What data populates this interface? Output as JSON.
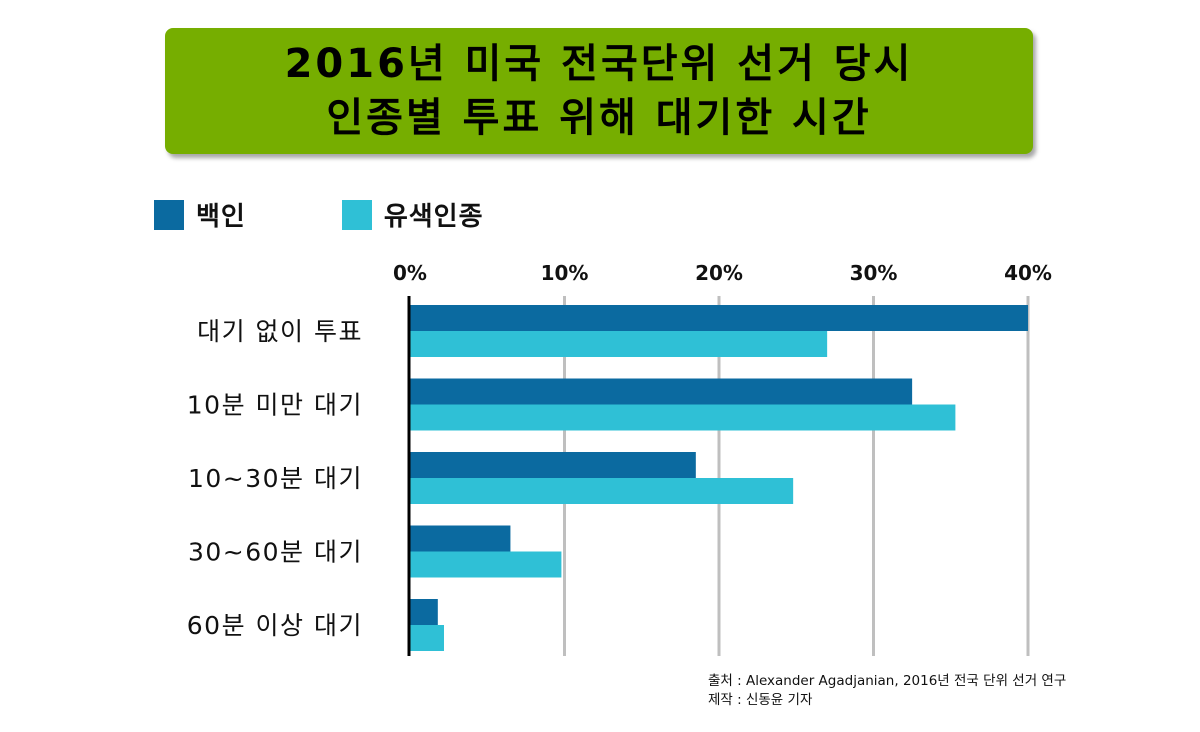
{
  "title_lines": [
    "2016년 미국 전국단위 선거 당시",
    "인종별 투표 위해 대기한 시간"
  ],
  "colors": {
    "title_bg": "#76ae00",
    "white": "#0b6aa0",
    "nonwhite": "#2fc0d6",
    "grid": "#bfbfbf",
    "axis": "#000000"
  },
  "chart_data": {
    "type": "bar",
    "orientation": "horizontal",
    "title": "2016년 미국 전국단위 선거 당시 인종별 투표 위해 대기한 시간",
    "categories": [
      "대기 없이 투표",
      "10분 미만 대기",
      "10~30분 대기",
      "30~60분 대기",
      "60분 이상 대기"
    ],
    "series": [
      {
        "name": "백인",
        "values": [
          40.0,
          32.5,
          18.5,
          6.5,
          1.8
        ]
      },
      {
        "name": "유색인종",
        "values": [
          27.0,
          35.3,
          24.8,
          9.8,
          2.2
        ]
      }
    ],
    "xlim": [
      0,
      40
    ],
    "xticks": [
      0,
      10,
      20,
      30,
      40
    ],
    "xtick_labels": [
      "0%",
      "10%",
      "20%",
      "30%",
      "40%"
    ],
    "grid": true,
    "legend_position": "top-left",
    "axis_position": "top"
  },
  "source": {
    "line1": "출처 : Alexander Agadjanian, 2016년 전국 단위 선거 연구",
    "line2": "제작 : 신동윤 기자"
  }
}
